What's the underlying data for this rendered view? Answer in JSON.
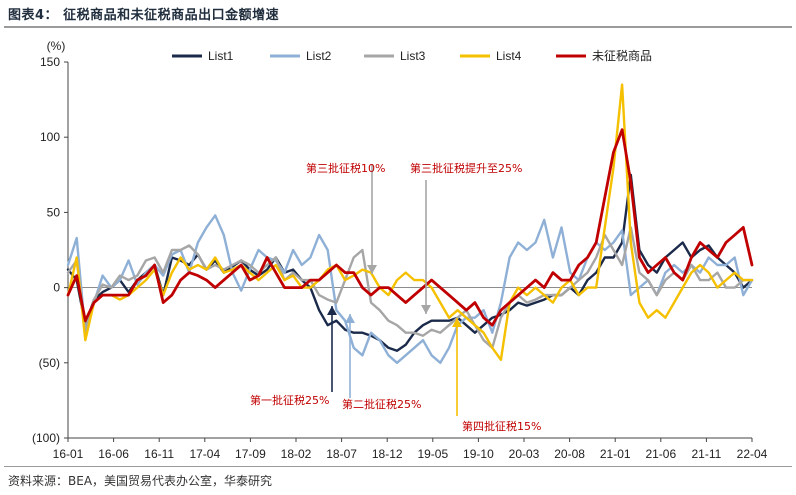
{
  "header": {
    "title": "图表4：  征税商品和未征税商品出口金额增速"
  },
  "footer": {
    "source": "资料来源：BEA，美国贸易代表办公室，华泰研究"
  },
  "chart_data": {
    "type": "line",
    "title": "",
    "ylabel": "(%)",
    "xlabel": "",
    "ylim": [
      -100,
      150
    ],
    "yticks": [
      -100,
      -50,
      0,
      50,
      100,
      150
    ],
    "ytick_labels": [
      "(100)",
      "(50)",
      "0",
      "50",
      "100",
      "150"
    ],
    "xticks": [
      "16-01",
      "16-06",
      "16-11",
      "17-04",
      "17-09",
      "18-02",
      "18-07",
      "18-12",
      "19-05",
      "19-10",
      "20-03",
      "20-08",
      "21-01",
      "21-06",
      "21-11",
      "22-04"
    ],
    "grid": false,
    "legend_position": "top",
    "colors": {
      "List1": "#1b2a4a",
      "List2": "#8fb0d6",
      "List3": "#a6a6a6",
      "List4": "#f5c000",
      "未征税商品": "#c00000"
    },
    "series": [
      {
        "name": "List1",
        "values": [
          12,
          5,
          -25,
          -8,
          -3,
          0,
          5,
          -3,
          5,
          10,
          15,
          -5,
          20,
          18,
          15,
          22,
          12,
          18,
          10,
          14,
          18,
          12,
          8,
          12,
          20,
          10,
          12,
          5,
          0,
          -15,
          -25,
          -22,
          -28,
          -30,
          -30,
          -32,
          -35,
          -40,
          -42,
          -38,
          -30,
          -25,
          -22,
          -22,
          -22,
          -20,
          -25,
          -30,
          -25,
          -20,
          -18,
          -15,
          -10,
          -12,
          -10,
          -8,
          -5,
          -5,
          0,
          -5,
          5,
          10,
          20,
          20,
          30,
          75,
          25,
          15,
          10,
          20,
          25,
          30,
          20,
          25,
          28,
          20,
          15,
          10,
          0,
          5
        ]
      },
      {
        "name": "List2",
        "values": [
          15,
          33,
          -30,
          -10,
          8,
          0,
          5,
          18,
          2,
          10,
          15,
          8,
          22,
          25,
          10,
          30,
          40,
          48,
          35,
          10,
          -2,
          12,
          25,
          20,
          18,
          10,
          25,
          15,
          20,
          35,
          25,
          -15,
          -22,
          -40,
          -45,
          -30,
          -35,
          -45,
          -50,
          -45,
          -40,
          -35,
          -45,
          -50,
          -40,
          -25,
          -20,
          -20,
          -15,
          -30,
          -10,
          20,
          30,
          25,
          30,
          45,
          20,
          40,
          10,
          5,
          20,
          30,
          25,
          30,
          38,
          -5,
          0,
          5,
          -5,
          10,
          15,
          10,
          15,
          10,
          20,
          15,
          15,
          20,
          -5,
          5
        ]
      },
      {
        "name": "List3",
        "values": [
          10,
          18,
          -28,
          -8,
          2,
          0,
          8,
          5,
          8,
          18,
          20,
          10,
          25,
          25,
          28,
          22,
          12,
          15,
          12,
          15,
          18,
          15,
          10,
          15,
          20,
          5,
          10,
          5,
          5,
          -5,
          -8,
          -10,
          5,
          20,
          25,
          -10,
          -15,
          -22,
          -25,
          -30,
          -30,
          -32,
          -28,
          -30,
          -25,
          -20,
          -15,
          -25,
          -35,
          -40,
          -20,
          -10,
          -5,
          -10,
          -8,
          -5,
          -5,
          -5,
          0,
          5,
          10,
          20,
          35,
          25,
          15,
          40,
          10,
          5,
          -5,
          5,
          10,
          5,
          15,
          5,
          5,
          10,
          0,
          0,
          5,
          5
        ]
      },
      {
        "name": "List4",
        "values": [
          -5,
          20,
          -35,
          -10,
          -5,
          -5,
          -8,
          -5,
          0,
          5,
          12,
          -5,
          10,
          20,
          12,
          15,
          12,
          20,
          10,
          12,
          15,
          10,
          5,
          10,
          15,
          5,
          8,
          0,
          0,
          5,
          12,
          15,
          5,
          8,
          12,
          10,
          0,
          -5,
          5,
          10,
          5,
          5,
          0,
          -10,
          -20,
          -15,
          -20,
          -25,
          -30,
          -40,
          -48,
          -10,
          0,
          -5,
          0,
          -5,
          -10,
          0,
          5,
          -5,
          0,
          0,
          40,
          80,
          135,
          30,
          -10,
          -20,
          -15,
          -20,
          -10,
          0,
          10,
          15,
          10,
          0,
          5,
          10,
          5,
          5
        ]
      },
      {
        "name": "未征税商品",
        "values": [
          -5,
          8,
          -22,
          -10,
          -5,
          -5,
          -5,
          -5,
          5,
          8,
          15,
          -10,
          -5,
          5,
          10,
          8,
          5,
          0,
          5,
          10,
          15,
          5,
          8,
          20,
          10,
          0,
          0,
          0,
          5,
          5,
          10,
          15,
          10,
          10,
          0,
          -5,
          0,
          0,
          -5,
          -10,
          -5,
          0,
          5,
          0,
          -5,
          -10,
          -15,
          -10,
          -20,
          -25,
          -15,
          -10,
          -5,
          0,
          5,
          0,
          10,
          5,
          5,
          15,
          20,
          30,
          60,
          90,
          105,
          70,
          20,
          10,
          15,
          20,
          10,
          5,
          20,
          30,
          25,
          20,
          30,
          35,
          40,
          15
        ]
      }
    ],
    "annotations": [
      {
        "text": "第三批征税10%"
      },
      {
        "text": "第三批征税提升至25%"
      },
      {
        "text": "第一批征税25%"
      },
      {
        "text": "第二批征税25%"
      },
      {
        "text": "第四批征税15%"
      }
    ]
  }
}
